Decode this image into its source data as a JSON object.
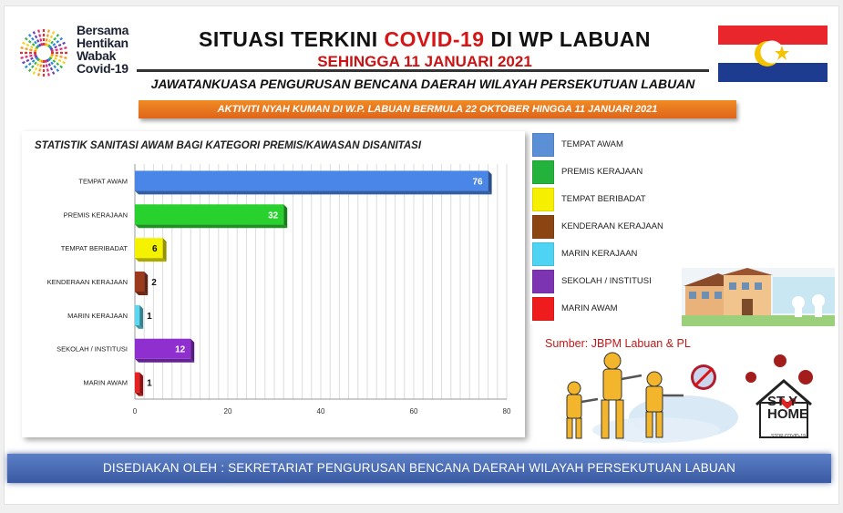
{
  "logo": {
    "lines": [
      "Bersama",
      "Hentikan",
      "Wabak",
      "Covid-19"
    ]
  },
  "header": {
    "title_part1": "SITUASI TERKINI ",
    "title_highlight": "COVID-19",
    "title_part2": " DI WP LABUAN",
    "date_line": "SEHINGGA 11 JANUARI 2021",
    "subtitle": "JAWATANKUASA PENGURUSAN BENCANA DAERAH WILAYAH PERSEKUTUAN  LABUAN",
    "activity_bar": "AKTIVITI NYAH KUMAN DI W.P. LABUAN BERMULA 22 OKTOBER HINGGA 11 JANUARI 2021"
  },
  "chart_data": {
    "type": "bar",
    "orientation": "horizontal",
    "title": "STATISTIK SANITASI AWAM BAGI KATEGORI PREMIS/KAWASAN DISANITASI",
    "categories": [
      "TEMPAT AWAM",
      "PREMIS KERAJAAN",
      "TEMPAT BERIBADAT",
      "KENDERAAN KERAJAAN",
      "MARIN KERAJAAN",
      "SEKOLAH / INSTITUSI",
      "MARIN AWAM"
    ],
    "values": [
      76,
      32,
      6,
      2,
      1,
      12,
      1
    ],
    "colors": [
      "#4a86e8",
      "#29d12f",
      "#f5f200",
      "#9c3a1e",
      "#5ad8f2",
      "#8f2fd0",
      "#e82020"
    ],
    "xlim": [
      0,
      80
    ],
    "xticks": [
      0,
      20,
      40,
      60,
      80
    ],
    "grid": true,
    "data_labels": true,
    "legend_position": "right"
  },
  "legend": {
    "items": [
      {
        "label": "TEMPAT AWAM",
        "color": "#5b8fd6"
      },
      {
        "label": "PREMIS KERAJAAN",
        "color": "#23b33c"
      },
      {
        "label": "TEMPAT BERIBADAT",
        "color": "#f7ef00"
      },
      {
        "label": "KENDERAAN KERAJAAN",
        "color": "#8b4513"
      },
      {
        "label": "MARIN KERAJAAN",
        "color": "#4fd3f2"
      },
      {
        "label": "SEKOLAH / INSTITUSI",
        "color": "#7d34b3"
      },
      {
        "label": "MARIN AWAM",
        "color": "#ee1c1c"
      }
    ]
  },
  "source": "Sumber: JBPM Labuan & PL",
  "stay_home": {
    "line1": "ST Y",
    "line2": "HOME",
    "small": "STOP COVID-19"
  },
  "footer": "DISEDIAKAN OLEH : SEKRETARIAT PENGURUSAN BENCANA DAERAH WILAYAH PERSEKUTUAN LABUAN"
}
